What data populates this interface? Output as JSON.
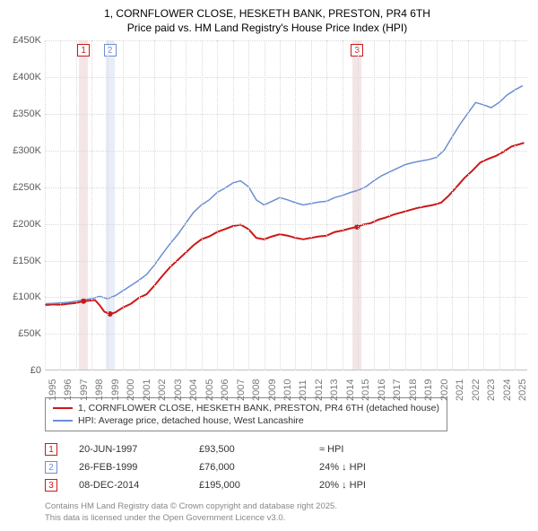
{
  "title_line1": "1, CORNFLOWER CLOSE, HESKETH BANK, PRESTON, PR4 6TH",
  "title_line2": "Price paid vs. HM Land Registry's House Price Index (HPI)",
  "chart": {
    "type": "line",
    "background_color": "#ffffff",
    "grid_color": "#d9d9d9",
    "ylim": [
      0,
      450000
    ],
    "ytick_step": 50000,
    "ytick_labels": [
      "£0",
      "£50K",
      "£100K",
      "£150K",
      "£200K",
      "£250K",
      "£300K",
      "£350K",
      "£400K",
      "£450K"
    ],
    "xlim": [
      1995,
      2025.8
    ],
    "xtick_step": 1,
    "xtick_labels": [
      "1995",
      "1996",
      "1997",
      "1998",
      "1999",
      "2000",
      "2001",
      "2002",
      "2003",
      "2004",
      "2005",
      "2006",
      "2007",
      "2008",
      "2009",
      "2010",
      "2011",
      "2012",
      "2013",
      "2014",
      "2015",
      "2016",
      "2017",
      "2018",
      "2019",
      "2020",
      "2021",
      "2022",
      "2023",
      "2024",
      "2025"
    ],
    "axis_color": "#bfbfbf",
    "tick_label_color": "#7a7a7a",
    "tick_label_fontsize": 11,
    "series": [
      {
        "name": "property",
        "color": "#cc1818",
        "width": 2,
        "points": [
          [
            1995.0,
            88000
          ],
          [
            1995.5,
            89000
          ],
          [
            1996.0,
            88500
          ],
          [
            1996.5,
            90000
          ],
          [
            1997.0,
            91000
          ],
          [
            1997.47,
            93500
          ],
          [
            1997.8,
            94000
          ],
          [
            1998.2,
            95000
          ],
          [
            1998.5,
            88000
          ],
          [
            1998.8,
            79000
          ],
          [
            1999.16,
            76000
          ],
          [
            1999.5,
            78000
          ],
          [
            2000.0,
            85000
          ],
          [
            2000.5,
            90000
          ],
          [
            2001.0,
            98000
          ],
          [
            2001.5,
            103000
          ],
          [
            2002.0,
            115000
          ],
          [
            2002.5,
            128000
          ],
          [
            2003.0,
            140000
          ],
          [
            2003.5,
            150000
          ],
          [
            2004.0,
            160000
          ],
          [
            2004.5,
            170000
          ],
          [
            2005.0,
            178000
          ],
          [
            2005.5,
            182000
          ],
          [
            2006.0,
            188000
          ],
          [
            2006.5,
            192000
          ],
          [
            2007.0,
            196000
          ],
          [
            2007.5,
            198000
          ],
          [
            2008.0,
            192000
          ],
          [
            2008.5,
            180000
          ],
          [
            2009.0,
            178000
          ],
          [
            2009.5,
            182000
          ],
          [
            2010.0,
            185000
          ],
          [
            2010.5,
            183000
          ],
          [
            2011.0,
            180000
          ],
          [
            2011.5,
            178000
          ],
          [
            2012.0,
            180000
          ],
          [
            2012.5,
            182000
          ],
          [
            2013.0,
            183000
          ],
          [
            2013.5,
            188000
          ],
          [
            2014.0,
            190000
          ],
          [
            2014.5,
            193000
          ],
          [
            2014.94,
            195000
          ],
          [
            2015.3,
            198000
          ],
          [
            2015.8,
            200000
          ],
          [
            2016.3,
            205000
          ],
          [
            2016.8,
            208000
          ],
          [
            2017.3,
            212000
          ],
          [
            2017.8,
            215000
          ],
          [
            2018.3,
            218000
          ],
          [
            2018.8,
            221000
          ],
          [
            2019.3,
            223000
          ],
          [
            2019.8,
            225000
          ],
          [
            2020.3,
            228000
          ],
          [
            2020.8,
            238000
          ],
          [
            2021.3,
            250000
          ],
          [
            2021.8,
            262000
          ],
          [
            2022.3,
            272000
          ],
          [
            2022.8,
            283000
          ],
          [
            2023.3,
            288000
          ],
          [
            2023.8,
            292000
          ],
          [
            2024.3,
            298000
          ],
          [
            2024.8,
            305000
          ],
          [
            2025.3,
            308000
          ],
          [
            2025.6,
            310000
          ]
        ]
      },
      {
        "name": "hpi",
        "color": "#6b8fd4",
        "width": 1.5,
        "points": [
          [
            1995.0,
            90000
          ],
          [
            1995.5,
            90500
          ],
          [
            1996.0,
            91000
          ],
          [
            1996.5,
            92000
          ],
          [
            1997.0,
            93500
          ],
          [
            1997.5,
            95000
          ],
          [
            1998.0,
            97000
          ],
          [
            1998.5,
            100000
          ],
          [
            1999.0,
            97000
          ],
          [
            1999.5,
            101000
          ],
          [
            2000.0,
            108000
          ],
          [
            2000.5,
            115000
          ],
          [
            2001.0,
            122000
          ],
          [
            2001.5,
            130000
          ],
          [
            2002.0,
            143000
          ],
          [
            2002.5,
            158000
          ],
          [
            2003.0,
            172000
          ],
          [
            2003.5,
            185000
          ],
          [
            2004.0,
            200000
          ],
          [
            2004.5,
            215000
          ],
          [
            2005.0,
            225000
          ],
          [
            2005.5,
            232000
          ],
          [
            2006.0,
            242000
          ],
          [
            2006.5,
            248000
          ],
          [
            2007.0,
            255000
          ],
          [
            2007.5,
            258000
          ],
          [
            2008.0,
            250000
          ],
          [
            2008.5,
            232000
          ],
          [
            2009.0,
            225000
          ],
          [
            2009.5,
            230000
          ],
          [
            2010.0,
            235000
          ],
          [
            2010.5,
            232000
          ],
          [
            2011.0,
            228000
          ],
          [
            2011.5,
            225000
          ],
          [
            2012.0,
            227000
          ],
          [
            2012.5,
            229000
          ],
          [
            2013.0,
            230000
          ],
          [
            2013.5,
            235000
          ],
          [
            2014.0,
            238000
          ],
          [
            2014.5,
            242000
          ],
          [
            2015.0,
            245000
          ],
          [
            2015.5,
            250000
          ],
          [
            2016.0,
            258000
          ],
          [
            2016.5,
            265000
          ],
          [
            2017.0,
            270000
          ],
          [
            2017.5,
            275000
          ],
          [
            2018.0,
            280000
          ],
          [
            2018.5,
            283000
          ],
          [
            2019.0,
            285000
          ],
          [
            2019.5,
            287000
          ],
          [
            2020.0,
            290000
          ],
          [
            2020.5,
            300000
          ],
          [
            2021.0,
            318000
          ],
          [
            2021.5,
            335000
          ],
          [
            2022.0,
            350000
          ],
          [
            2022.5,
            365000
          ],
          [
            2023.0,
            362000
          ],
          [
            2023.5,
            358000
          ],
          [
            2024.0,
            365000
          ],
          [
            2024.5,
            375000
          ],
          [
            2025.0,
            382000
          ],
          [
            2025.5,
            388000
          ]
        ]
      }
    ],
    "markers": [
      {
        "num": "1",
        "x": 1997.47,
        "band_color": "#f4e6e6",
        "border_color": "#cc1818"
      },
      {
        "num": "2",
        "x": 1999.16,
        "band_color": "#e8edf7",
        "border_color": "#6b8fd4"
      },
      {
        "num": "3",
        "x": 2014.94,
        "band_color": "#f4e6e6",
        "border_color": "#cc1818"
      }
    ]
  },
  "legend": {
    "items": [
      {
        "color": "#cc1818",
        "label": "1, CORNFLOWER CLOSE, HESKETH BANK, PRESTON, PR4 6TH (detached house)"
      },
      {
        "color": "#6b8fd4",
        "label": "HPI: Average price, detached house, West Lancashire"
      }
    ]
  },
  "events": [
    {
      "num": "1",
      "color": "#cc1818",
      "date": "20-JUN-1997",
      "price": "£93,500",
      "change": "≈ HPI"
    },
    {
      "num": "2",
      "color": "#6b8fd4",
      "date": "26-FEB-1999",
      "price": "£76,000",
      "change": "24% ↓ HPI"
    },
    {
      "num": "3",
      "color": "#cc1818",
      "date": "08-DEC-2014",
      "price": "£195,000",
      "change": "20% ↓ HPI"
    }
  ],
  "footer_line1": "Contains HM Land Registry data © Crown copyright and database right 2025.",
  "footer_line2": "This data is licensed under the Open Government Licence v3.0."
}
